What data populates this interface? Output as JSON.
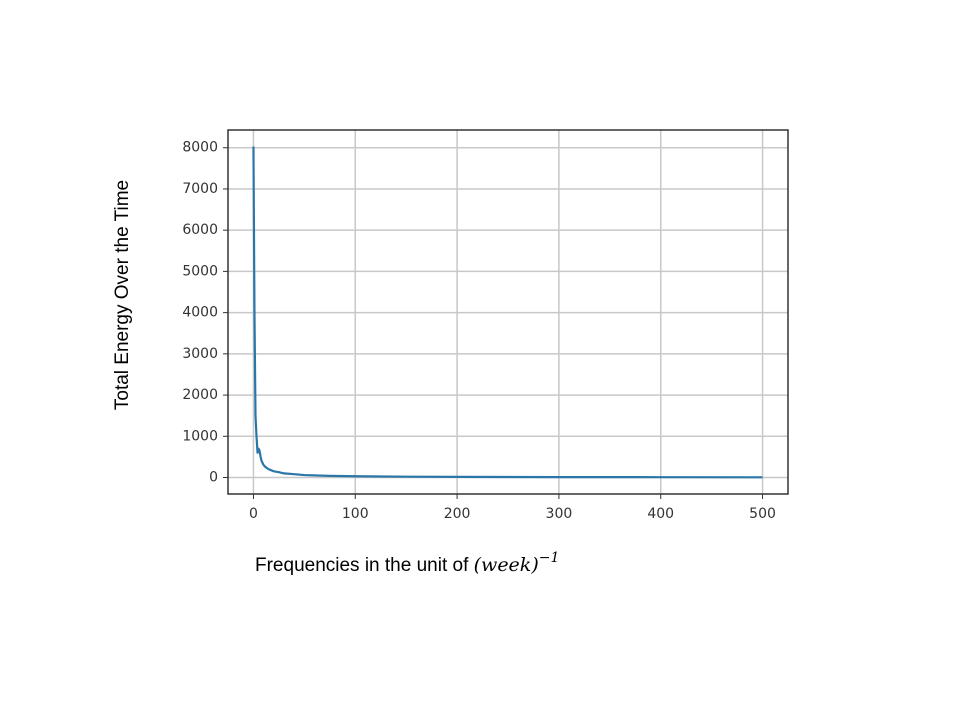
{
  "chart_data": {
    "type": "line",
    "ylabel": "Total Energy Over the Time",
    "xlabel": {
      "text": "Frequencies in the unit of",
      "math": "(week)",
      "exponent": "−1"
    },
    "x": [
      0,
      1,
      2,
      3,
      4,
      5,
      6,
      7,
      8,
      10,
      12,
      15,
      20,
      25,
      30,
      40,
      50,
      75,
      100,
      150,
      200,
      300,
      400,
      500
    ],
    "values": [
      8030,
      4000,
      1500,
      1000,
      600,
      700,
      650,
      500,
      400,
      300,
      250,
      200,
      150,
      130,
      100,
      80,
      60,
      40,
      30,
      20,
      15,
      10,
      8,
      5
    ],
    "color": "#2b76a8",
    "xlim": [
      -25,
      525
    ],
    "ylim": [
      -400,
      8430
    ],
    "xticks": [
      0,
      100,
      200,
      300,
      400,
      500
    ],
    "yticks": [
      0,
      1000,
      2000,
      3000,
      4000,
      5000,
      6000,
      7000,
      8000
    ],
    "grid": true
  }
}
